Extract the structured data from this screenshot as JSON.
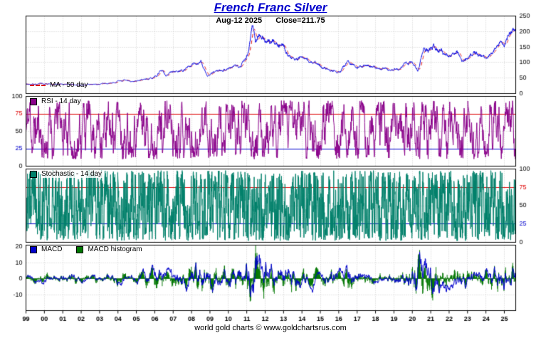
{
  "title": "French Franc Silver",
  "subtitle": {
    "date": "Aug-12  2025",
    "close": "Close=211.75"
  },
  "footer": "world gold charts © www.goldchartsrus.com",
  "legends": {
    "price": "MA - 50 day",
    "rsi": "RSI - 14 day",
    "stoch": "Stochastic - 14 day",
    "macd": "MACD",
    "macd_hist": "MACD histogram"
  },
  "colors": {
    "title": "#0000cc",
    "price_line": "#0000e0",
    "ma_line": "#dd0000",
    "rsi": "#8a008a",
    "stochastic": "#00806b",
    "macd_line": "#0000cc",
    "macd_histogram": "#007700",
    "overbought": "#dd0000",
    "oversold": "#0000cc",
    "grid": "#c9c9c9",
    "background": "#ffffff"
  },
  "x_axis": {
    "labels": [
      "99",
      "00",
      "01",
      "02",
      "03",
      "04",
      "05",
      "06",
      "07",
      "08",
      "09",
      "10",
      "11",
      "12",
      "13",
      "14",
      "15",
      "16",
      "17",
      "18",
      "19",
      "20",
      "21",
      "22",
      "23",
      "24",
      "25"
    ]
  },
  "chart_data": [
    {
      "type": "line",
      "name": "French Franc Silver close",
      "title": "French Franc Silver",
      "x_range": [
        1999.0,
        2025.62
      ],
      "ylim": [
        0,
        250
      ],
      "yticks": [
        0,
        50,
        100,
        150,
        200,
        250
      ],
      "grid_ticks": [
        50,
        100,
        150,
        200
      ],
      "axis_side": "right",
      "last_date": "Aug-12 2025",
      "last_close": 211.75,
      "series": [
        {
          "name": "Close",
          "color": "#0000e0",
          "noise_seed": 7,
          "anchors": [
            [
              1999.0,
              31
            ],
            [
              1999.4,
              30
            ],
            [
              1999.8,
              31
            ],
            [
              2000.2,
              29
            ],
            [
              2000.6,
              30
            ],
            [
              2001.0,
              29
            ],
            [
              2001.5,
              28
            ],
            [
              2002.0,
              28
            ],
            [
              2002.5,
              29
            ],
            [
              2003.0,
              30
            ],
            [
              2003.5,
              33
            ],
            [
              2004.0,
              39
            ],
            [
              2004.3,
              42
            ],
            [
              2004.7,
              37
            ],
            [
              2005.0,
              42
            ],
            [
              2005.4,
              45
            ],
            [
              2005.8,
              48
            ],
            [
              2006.1,
              57
            ],
            [
              2006.35,
              77
            ],
            [
              2006.6,
              61
            ],
            [
              2006.9,
              67
            ],
            [
              2007.2,
              72
            ],
            [
              2007.6,
              77
            ],
            [
              2007.9,
              84
            ],
            [
              2008.2,
              97
            ],
            [
              2008.5,
              101
            ],
            [
              2008.85,
              57
            ],
            [
              2009.1,
              64
            ],
            [
              2009.5,
              74
            ],
            [
              2009.9,
              80
            ],
            [
              2010.3,
              85
            ],
            [
              2010.7,
              94
            ],
            [
              2010.95,
              120
            ],
            [
              2011.1,
              142
            ],
            [
              2011.3,
              224
            ],
            [
              2011.5,
              170
            ],
            [
              2011.7,
              196
            ],
            [
              2011.9,
              176
            ],
            [
              2012.1,
              160
            ],
            [
              2012.4,
              172
            ],
            [
              2012.75,
              154
            ],
            [
              2013.0,
              158
            ],
            [
              2013.3,
              122
            ],
            [
              2013.6,
              112
            ],
            [
              2013.9,
              118
            ],
            [
              2014.3,
              107
            ],
            [
              2014.7,
              98
            ],
            [
              2015.0,
              88
            ],
            [
              2015.4,
              80
            ],
            [
              2015.9,
              74
            ],
            [
              2016.1,
              72
            ],
            [
              2016.55,
              104
            ],
            [
              2016.9,
              86
            ],
            [
              2017.3,
              92
            ],
            [
              2017.7,
              90
            ],
            [
              2018.1,
              86
            ],
            [
              2018.5,
              80
            ],
            [
              2018.9,
              76
            ],
            [
              2019.2,
              76
            ],
            [
              2019.6,
              94
            ],
            [
              2019.9,
              98
            ],
            [
              2020.15,
              92
            ],
            [
              2020.3,
              74
            ],
            [
              2020.65,
              148
            ],
            [
              2020.9,
              132
            ],
            [
              2021.15,
              146
            ],
            [
              2021.5,
              142
            ],
            [
              2021.8,
              126
            ],
            [
              2022.1,
              128
            ],
            [
              2022.4,
              140
            ],
            [
              2022.7,
              106
            ],
            [
              2023.0,
              118
            ],
            [
              2023.4,
              132
            ],
            [
              2023.8,
              122
            ],
            [
              2024.1,
              114
            ],
            [
              2024.4,
              142
            ],
            [
              2024.75,
              162
            ],
            [
              2025.0,
              168
            ],
            [
              2025.2,
              182
            ],
            [
              2025.45,
              198
            ],
            [
              2025.62,
              211.75
            ]
          ]
        },
        {
          "name": "MA - 50 day",
          "color": "#dd0000",
          "style": "dashed",
          "derived": "50-day moving average of Close"
        }
      ]
    },
    {
      "type": "line",
      "name": "RSI - 14 day",
      "color": "#8a008a",
      "ylim": [
        0,
        100
      ],
      "yticks": [
        0,
        25,
        50,
        75,
        100
      ],
      "grid_ticks": [
        50
      ],
      "axis_side": "left",
      "thresholds": [
        {
          "value": 75,
          "color": "#dd0000"
        },
        {
          "value": 25,
          "color": "#0000cc"
        }
      ],
      "gen": {
        "seed": 11,
        "points": 1700,
        "step": 26,
        "min": 10,
        "max": 94
      },
      "note": "dense oscillation between ~10 and ~94 over 1999-2025"
    },
    {
      "type": "line",
      "name": "Stochastic - 14 day",
      "color": "#00806b",
      "ylim": [
        0,
        100
      ],
      "yticks": [
        0,
        25,
        50,
        75,
        100
      ],
      "grid_ticks": [
        50
      ],
      "axis_side": "right",
      "thresholds": [
        {
          "value": 75,
          "color": "#dd0000"
        },
        {
          "value": 25,
          "color": "#0000cc"
        }
      ],
      "gen": {
        "seed": 23,
        "points": 2600,
        "step": 55,
        "min": 2,
        "max": 98
      },
      "note": "very dense full-range oscillation 0-100 over 1999-2025"
    },
    {
      "type": "line+histogram",
      "name": "MACD",
      "ylim": [
        -20,
        21
      ],
      "yticks": [
        20,
        10,
        0,
        -10
      ],
      "grid_ticks": [
        10,
        -10
      ],
      "zero_line": 0,
      "axis_side": "left",
      "series": [
        {
          "name": "MACD",
          "color": "#0000cc"
        },
        {
          "name": "MACD histogram",
          "color": "#007700"
        }
      ],
      "gen": {
        "seed": 41,
        "points": 1500,
        "envelope": [
          [
            1999,
            2
          ],
          [
            2003,
            1.8
          ],
          [
            2005,
            2.5
          ],
          [
            2006.4,
            5
          ],
          [
            2007,
            3.5
          ],
          [
            2008.3,
            6
          ],
          [
            2008.8,
            7
          ],
          [
            2009.5,
            3.5
          ],
          [
            2010.8,
            6
          ],
          [
            2011.3,
            13
          ],
          [
            2011.7,
            9
          ],
          [
            2012.5,
            5
          ],
          [
            2013.3,
            7
          ],
          [
            2014,
            3.5
          ],
          [
            2015,
            2.5
          ],
          [
            2016.5,
            5
          ],
          [
            2017.5,
            2.5
          ],
          [
            2018.5,
            2
          ],
          [
            2019.6,
            4
          ],
          [
            2020.2,
            8
          ],
          [
            2020.7,
            9
          ],
          [
            2021.2,
            6
          ],
          [
            2022,
            4
          ],
          [
            2022.7,
            4.5
          ],
          [
            2023.5,
            3
          ],
          [
            2024.3,
            5
          ],
          [
            2024.8,
            6
          ],
          [
            2025.3,
            5
          ],
          [
            2025.62,
            7
          ]
        ]
      },
      "note": "oscillates around 0, roughly -13 to +13, spikes near 2011 and 2020"
    }
  ]
}
